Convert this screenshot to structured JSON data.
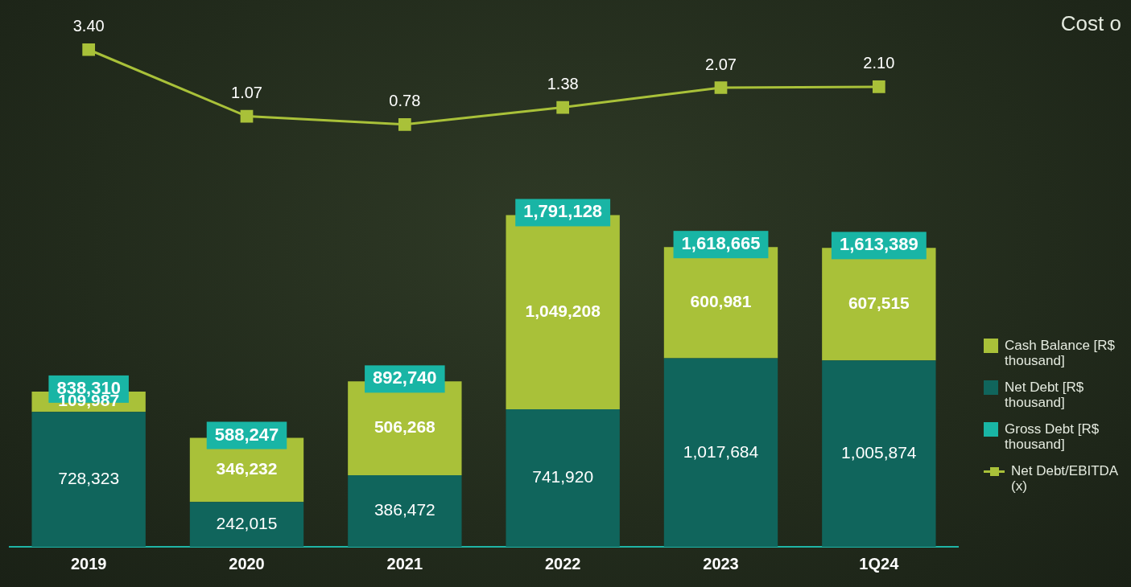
{
  "chart_data": {
    "type": "bar",
    "stacked": true,
    "data_labels": true,
    "tick_labels": "x",
    "grid": false,
    "legend": "right",
    "categories": [
      "2019",
      "2020",
      "2021",
      "2022",
      "2023",
      "1Q24"
    ],
    "annotations": [
      "Cost o"
    ],
    "series": [
      {
        "name": "Cash Balance [R$ thousand]",
        "type": "bar",
        "color": "#a9c139",
        "values": [
          109987,
          346232,
          506268,
          1049208,
          600981,
          607515
        ],
        "value_labels": [
          "109,987",
          "346,232",
          "506,268",
          "1,049,208",
          "600,981",
          "607,515"
        ]
      },
      {
        "name": "Net Debt [R$ thousand]",
        "type": "bar",
        "color": "#10655c",
        "values": [
          728323,
          242015,
          386472,
          741920,
          1017684,
          1005874
        ],
        "value_labels": [
          "728,323",
          "242,015",
          "386,472",
          "741,920",
          "1,017,684",
          "1,005,874"
        ]
      },
      {
        "name": "Gross Debt [R$ thousand]",
        "type": "line",
        "line_style": "none",
        "color": "#19b5a5",
        "values": [
          838310,
          588247,
          892740,
          1791128,
          1618665,
          1613389
        ],
        "value_labels": [
          "838,310",
          "588,247",
          "892,740",
          "1,791,128",
          "1,618,665",
          "1,613,389"
        ]
      },
      {
        "name": "Net Debt/EBITDA (x)",
        "type": "line",
        "axis": "y2",
        "marker": "square",
        "color": "#a9c139",
        "values": [
          3.4,
          1.07,
          0.78,
          1.38,
          2.07,
          2.1
        ],
        "value_labels": [
          "3.40",
          "1.07",
          "0.78",
          "1.38",
          "2.07",
          "2.10"
        ]
      }
    ],
    "ylim": [
      0,
      2900000
    ],
    "yticks": [
      0,
      2900000
    ],
    "y2lim": [
      -14,
      4.8
    ],
    "y2ticks": [
      -14,
      4.8
    ]
  }
}
